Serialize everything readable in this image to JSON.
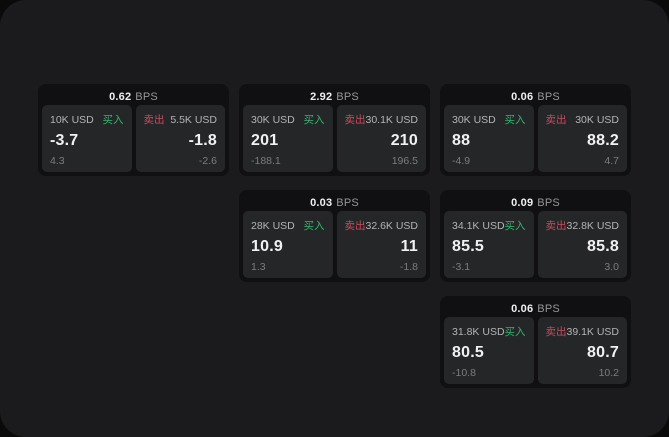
{
  "labels": {
    "bps_unit": "BPS",
    "buy": "买入",
    "sell": "卖出"
  },
  "theme": {
    "page_bg": "#0a0a0b",
    "window_bg": "#1b1b1d",
    "card_bg": "#101012",
    "panel_bg": "#252628",
    "buy_color": "#32b56d",
    "sell_color": "#c94b5e"
  },
  "cards": [
    {
      "bps": "0.62",
      "buy": {
        "size": "10K USD",
        "value": "-3.7",
        "delta": "4.3"
      },
      "sell": {
        "size": "5.5K USD",
        "value": "-1.8",
        "delta": "-2.6"
      }
    },
    {
      "bps": "2.92",
      "buy": {
        "size": "30K USD",
        "value": "201",
        "delta": "-188.1"
      },
      "sell": {
        "size": "30.1K USD",
        "value": "210",
        "delta": "196.5"
      }
    },
    {
      "bps": "0.06",
      "buy": {
        "size": "30K USD",
        "value": "88",
        "delta": "-4.9"
      },
      "sell": {
        "size": "30K USD",
        "value": "88.2",
        "delta": "4.7"
      }
    },
    {
      "bps": "0.03",
      "buy": {
        "size": "28K USD",
        "value": "10.9",
        "delta": "1.3"
      },
      "sell": {
        "size": "32.6K USD",
        "value": "11",
        "delta": "-1.8"
      }
    },
    {
      "bps": "0.09",
      "buy": {
        "size": "34.1K USD",
        "value": "85.5",
        "delta": "-3.1"
      },
      "sell": {
        "size": "32.8K USD",
        "value": "85.8",
        "delta": "3.0"
      }
    },
    {
      "bps": "0.06",
      "buy": {
        "size": "31.8K USD",
        "value": "80.5",
        "delta": "-10.8"
      },
      "sell": {
        "size": "39.1K USD",
        "value": "80.7",
        "delta": "10.2"
      }
    }
  ]
}
